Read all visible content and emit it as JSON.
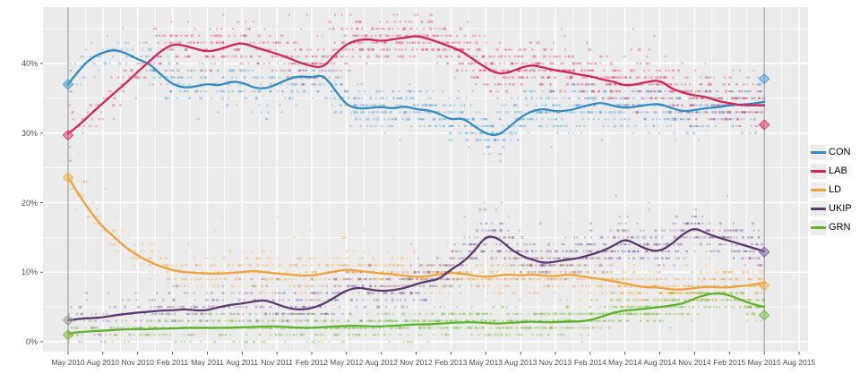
{
  "chart_data": {
    "type": "scatter",
    "title": "",
    "description": "UK voting-intention opinion polls May 2010 - May 2015: individual poll scatter with smoothed trend lines per party and general-election result diamonds",
    "legend_position": "right",
    "grid": true,
    "panel_background": "#ebebeb",
    "grid_color": "#ffffff",
    "axis_text_color": "#4d4d4d",
    "tick_color": "#333333",
    "election_line_color": "#8b8b8b",
    "y_tick_labels": [
      "0%",
      "10%",
      "20%",
      "30%",
      "40%"
    ],
    "y_ticks": [
      0,
      10,
      20,
      30,
      40
    ],
    "y_minor_ticks": [
      5,
      15,
      25,
      35,
      45
    ],
    "ylim": [
      -1.4,
      48.1
    ],
    "x_tick_labels": [
      "May 2010",
      "Aug 2010",
      "Nov 2010",
      "Feb 2011",
      "May 2011",
      "Aug 2011",
      "Nov 2011",
      "Feb 2012",
      "May 2012",
      "Aug 2012",
      "Nov 2012",
      "Feb 2013",
      "May 2013",
      "Aug 2013",
      "Nov 2013",
      "Feb 2014",
      "May 2014",
      "Aug 2014",
      "Nov 2014",
      "Feb 2015",
      "May 2015",
      "Aug 2015"
    ],
    "x_months_per_tick": 3,
    "x_total_months": 63,
    "trend_months_span": 60,
    "series": [
      {
        "label": "CON",
        "line_color": "#318cc4",
        "scatter_color": "#4ba0d9",
        "scatter_sigma": 1.7,
        "values": [
          37.0,
          39.2,
          40.8,
          41.6,
          42.0,
          41.5,
          40.6,
          40.0,
          38.4,
          37.0,
          36.5,
          36.7,
          37.1,
          36.8,
          37.4,
          37.3,
          36.5,
          36.4,
          37.0,
          37.8,
          38.2,
          38.0,
          38.4,
          36.2,
          34.0,
          33.5,
          33.6,
          33.8,
          33.5,
          33.9,
          33.4,
          33.3,
          32.8,
          31.9,
          32.2,
          31.0,
          29.9,
          29.6,
          30.8,
          32.3,
          33.2,
          33.5,
          33.1,
          33.2,
          33.6,
          34.1,
          34.4,
          33.9,
          33.6,
          33.8,
          34.1,
          34.2,
          33.6,
          33.1,
          33.3,
          33.6,
          33.7,
          34.0,
          34.1,
          34.2,
          34.5
        ]
      },
      {
        "label": "LAB",
        "line_color": "#d42458",
        "scatter_color": "#df3d67",
        "scatter_sigma": 1.7,
        "values": [
          29.9,
          31.2,
          32.8,
          34.3,
          35.8,
          37.2,
          38.8,
          40.3,
          41.8,
          42.8,
          42.6,
          42.1,
          41.7,
          42.0,
          42.6,
          43.0,
          42.4,
          41.9,
          41.4,
          40.8,
          40.1,
          39.6,
          39.4,
          41.3,
          42.8,
          43.4,
          43.5,
          43.2,
          43.5,
          43.7,
          44.0,
          43.6,
          43.0,
          42.4,
          41.7,
          40.5,
          39.4,
          38.5,
          38.7,
          39.4,
          39.8,
          39.4,
          39.0,
          38.8,
          38.4,
          38.2,
          37.7,
          37.4,
          36.8,
          37.0,
          37.4,
          37.6,
          36.4,
          35.8,
          35.4,
          35.2,
          34.6,
          34.3,
          34.0,
          34.0,
          34.0
        ]
      },
      {
        "label": "LD",
        "line_color": "#efa33c",
        "scatter_color": "#f4b04c",
        "scatter_sigma": 1.3,
        "values": [
          23.6,
          21.0,
          18.5,
          16.5,
          15.0,
          13.5,
          12.4,
          11.5,
          10.8,
          10.3,
          10.0,
          9.9,
          9.8,
          9.8,
          9.9,
          10.0,
          10.2,
          10.0,
          9.8,
          9.7,
          9.5,
          9.5,
          9.8,
          10.1,
          10.4,
          10.2,
          10.0,
          9.8,
          9.7,
          9.5,
          9.3,
          9.4,
          9.7,
          9.9,
          9.8,
          9.5,
          9.3,
          9.5,
          9.7,
          9.5,
          9.7,
          9.5,
          9.4,
          9.7,
          9.5,
          9.2,
          9.0,
          8.7,
          8.4,
          8.0,
          7.8,
          7.8,
          7.5,
          7.5,
          7.7,
          7.9,
          7.8,
          7.8,
          8.0,
          8.2,
          8.5
        ]
      },
      {
        "label": "UKIP",
        "line_color": "#5a3a6e",
        "scatter_color": "#8065a0",
        "scatter_sigma": 1.5,
        "values": [
          3.1,
          3.3,
          3.4,
          3.5,
          3.8,
          4.0,
          4.2,
          4.3,
          4.5,
          4.5,
          4.7,
          4.5,
          4.5,
          5.0,
          5.3,
          5.5,
          5.8,
          6.0,
          5.4,
          4.8,
          4.6,
          4.8,
          5.4,
          6.4,
          7.4,
          7.8,
          7.5,
          7.3,
          7.4,
          7.7,
          8.3,
          8.7,
          9.0,
          10.4,
          11.4,
          13.0,
          15.2,
          15.0,
          13.5,
          12.4,
          11.8,
          11.3,
          11.5,
          11.8,
          12.0,
          12.5,
          13.0,
          13.8,
          14.8,
          14.0,
          13.2,
          13.0,
          14.0,
          15.5,
          16.4,
          15.6,
          15.0,
          14.5,
          14.0,
          13.5,
          13.0
        ]
      },
      {
        "label": "GRN",
        "line_color": "#5fb32c",
        "scatter_color": "#7fbf45",
        "scatter_sigma": 1.0,
        "values": [
          1.2,
          1.4,
          1.5,
          1.6,
          1.7,
          1.8,
          1.8,
          1.8,
          1.9,
          1.9,
          2.0,
          2.0,
          2.0,
          2.0,
          2.0,
          2.1,
          2.1,
          2.2,
          2.2,
          2.1,
          2.0,
          2.0,
          2.1,
          2.2,
          2.3,
          2.3,
          2.2,
          2.2,
          2.3,
          2.4,
          2.5,
          2.5,
          2.6,
          2.7,
          2.8,
          2.8,
          2.7,
          2.6,
          2.7,
          2.8,
          2.9,
          2.8,
          2.8,
          2.9,
          2.9,
          3.1,
          3.6,
          4.2,
          4.5,
          4.6,
          4.8,
          5.0,
          5.2,
          5.5,
          6.2,
          6.8,
          7.0,
          6.7,
          6.0,
          5.4,
          5.0
        ]
      }
    ],
    "elections": [
      {
        "name": "2010 general election",
        "month": 0,
        "results": [
          {
            "party": "CON",
            "value": 37.0,
            "color": "#4ba0d9"
          },
          {
            "party": "LAB",
            "value": 29.7,
            "color": "#df3d67"
          },
          {
            "party": "LD",
            "value": 23.6,
            "color": "#f4b04c"
          },
          {
            "party": "UKIP",
            "value": 3.1,
            "color": "#9a9a9a"
          },
          {
            "party": "GRN",
            "value": 1.0,
            "color": "#7fbf45"
          }
        ]
      },
      {
        "name": "2015 general election",
        "month": 60,
        "results": [
          {
            "party": "CON",
            "value": 37.8,
            "color": "#4ba0d9"
          },
          {
            "party": "LAB",
            "value": 31.2,
            "color": "#df3d67"
          },
          {
            "party": "UKIP",
            "value": 12.9,
            "color": "#8065a0"
          },
          {
            "party": "LD",
            "value": 8.1,
            "color": "#f4b04c"
          },
          {
            "party": "GRN",
            "value": 3.8,
            "color": "#7fbf45"
          }
        ]
      }
    ],
    "scatter_seed": 42,
    "scatter_points_per_month": {
      "2010": 8,
      "2011": 15,
      "2012": 21,
      "2013_onwards": 24
    }
  },
  "legend": {
    "items": [
      {
        "label": "CON"
      },
      {
        "label": "LAB"
      },
      {
        "label": "LD"
      },
      {
        "label": "UKIP"
      },
      {
        "label": "GRN"
      }
    ]
  }
}
